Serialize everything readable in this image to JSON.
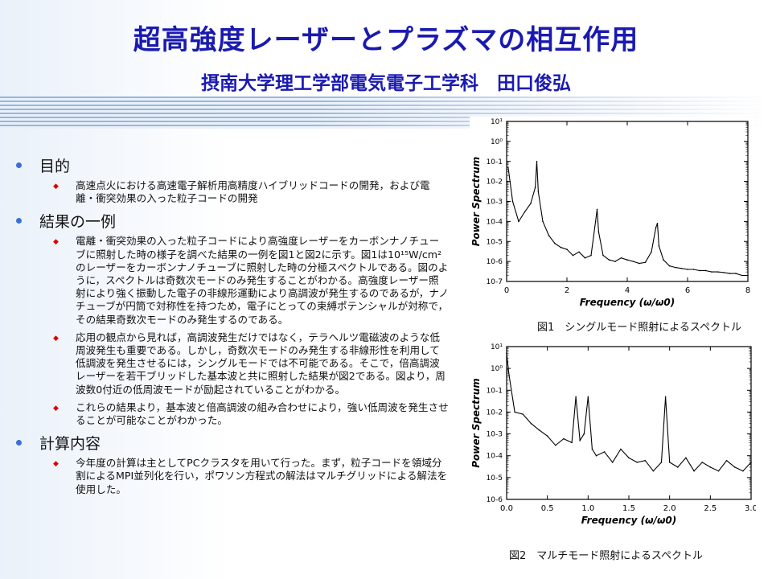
{
  "header": {
    "title": "超高強度レーザーとプラズマの相互作用",
    "subtitle": "摂南大学理工学部電気電子工学科　田口俊弘"
  },
  "sections": [
    {
      "heading": "目的",
      "items": [
        "高速点火における高速電子解析用高精度ハイブリッドコードの開発，および電離・衝突効果の入った粒子コードの開発"
      ]
    },
    {
      "heading": "結果の一例",
      "items": [
        "電離・衝突効果の入った粒子コードにより高強度レーザーをカーボンナノチューブに照射した時の様子を調べた結果の一例を図1と図2に示す。図1は10¹⁵W/cm²のレーザーをカーボンナノチューブに照射した時の分極スペクトルである。図のように，スペクトルは奇数次モードのみ発生することがわかる。高強度レーザー照射により強く振動した電子の非線形運動により高調波が発生するのであるが，ナノチューブが円筒で対称性を持つため，電子にとっての束縛ポテンシャルが対称で，その結果奇数次モードのみ発生するのである。",
        "応用の観点から見れば，高調波発生だけではなく，テラヘルツ電磁波のような低周波発生も重要である。しかし，奇数次モードのみ発生する非線形性を利用して低調波を発生させるには，シングルモードでは不可能である。そこで，倍高調波レーザーを若干ブリッドした基本波と共に照射した結果が図2である。図より，周波数0付近の低周波モードが励起されていることがわかる。",
        "これらの結果より，基本波と倍高調波の組み合わせにより，強い低周波を発生させることが可能なことがわかった。"
      ]
    },
    {
      "heading": "計算内容",
      "items": [
        "今年度の計算は主としてPCクラスタを用いて行った。まず，粒子コードを領域分割によるMPI並列化を行い，ポワソン方程式の解法はマルチグリッドによる解法を使用した。"
      ]
    }
  ],
  "chart_data": [
    {
      "type": "line",
      "caption": "図1　シングルモード照射によるスペクトル",
      "xlabel": "Frequency (ω/ω0)",
      "ylabel": "Power Spectrum",
      "xlim": [
        0,
        8
      ],
      "ylim_log10": [
        -7,
        1
      ],
      "yscale": "log",
      "xticks": [
        "0",
        "2",
        "4",
        "6",
        "8"
      ],
      "yticks": [
        "10-7",
        "10-6",
        "10-5",
        "10-4",
        "10-3",
        "10-2",
        "10-1",
        "10⁰",
        "10¹"
      ],
      "series": [
        {
          "x": [
            0.05,
            0.2,
            0.4,
            0.6,
            0.8,
            0.95,
            1.0,
            1.05,
            1.2,
            1.4,
            1.6,
            1.8,
            2.0,
            2.2,
            2.4,
            2.6,
            2.8,
            2.95,
            3.0,
            3.05,
            3.2,
            3.4,
            3.6,
            3.8,
            4.0,
            4.2,
            4.4,
            4.6,
            4.8,
            4.95,
            5.0,
            5.05,
            5.2,
            5.4,
            5.6,
            5.8,
            6.0,
            6.2,
            6.4,
            6.6,
            6.8,
            7.0,
            7.2,
            7.4,
            7.6,
            7.8,
            8.0
          ],
          "y": [
            0.05,
            0.001,
            0.0001,
            0.0003,
            0.0008,
            0.005,
            0.1,
            0.003,
            0.0001,
            2e-05,
            8e-06,
            5e-06,
            4e-06,
            2e-06,
            3e-06,
            1.5e-06,
            2e-06,
            0.0001,
            0.0004,
            3e-05,
            2e-06,
            1.2e-06,
            1e-06,
            1.5e-06,
            1.2e-06,
            1e-06,
            8e-07,
            9e-07,
            3e-06,
            5e-05,
            8e-05,
            6e-06,
            1.2e-06,
            6e-07,
            5e-07,
            4.5e-07,
            4e-07,
            4e-07,
            3.5e-07,
            3.5e-07,
            3e-07,
            3e-07,
            2.8e-07,
            2.5e-07,
            2.5e-07,
            2e-07,
            2e-07
          ]
        }
      ]
    },
    {
      "type": "line",
      "caption": "図2　マルチモード照射によるスペクトル",
      "xlabel": "Frequency (ω/ω0)",
      "ylabel": "Power Spectrum",
      "xlim": [
        0,
        3
      ],
      "ylim_log10": [
        -6,
        1
      ],
      "yscale": "log",
      "xticks": [
        "0.0",
        "0.5",
        "1.0",
        "1.5",
        "2.0",
        "2.5",
        "3.0"
      ],
      "yticks": [
        "10-6",
        "10-5",
        "10-4",
        "10-3",
        "10-2",
        "10-1",
        "10⁰",
        "10¹"
      ],
      "series": [
        {
          "x": [
            0.0,
            0.03,
            0.1,
            0.2,
            0.3,
            0.4,
            0.5,
            0.6,
            0.7,
            0.8,
            0.85,
            0.9,
            0.95,
            1.0,
            1.05,
            1.1,
            1.2,
            1.3,
            1.4,
            1.5,
            1.6,
            1.7,
            1.8,
            1.9,
            1.95,
            2.0,
            2.1,
            2.2,
            2.3,
            2.4,
            2.5,
            2.6,
            2.7,
            2.8,
            2.9,
            3.0
          ],
          "y": [
            5,
            0.5,
            0.01,
            0.008,
            0.003,
            0.0015,
            0.0008,
            0.0003,
            0.0006,
            0.0004,
            0.05,
            0.0005,
            0.001,
            0.05,
            0.0002,
            0.0001,
            0.00015,
            5e-05,
            0.0002,
            8e-05,
            5e-05,
            6e-05,
            2e-05,
            5e-05,
            0.05,
            5e-05,
            3e-05,
            8e-05,
            2e-05,
            5e-05,
            3e-05,
            2e-05,
            6e-05,
            3e-05,
            2e-05,
            5e-05
          ]
        }
      ]
    }
  ]
}
